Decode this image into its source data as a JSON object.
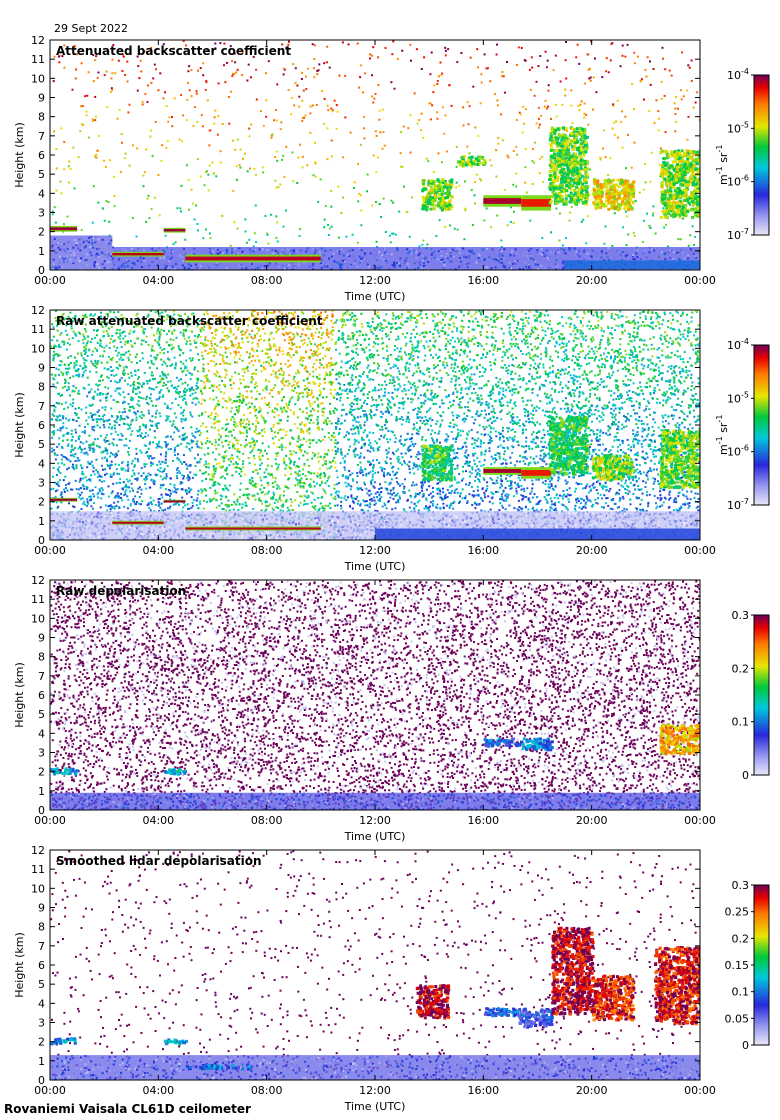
{
  "date": "29 Sept 2022",
  "footer": "Rovaniemi Vaisala CL61D ceilometer",
  "chart_data": [
    {
      "type": "heatmap",
      "title": "Attenuated backscatter coefficient",
      "xlabel": "Time (UTC)",
      "ylabel": "Height (km)",
      "x_ticks": [
        "00:00",
        "04:00",
        "08:00",
        "12:00",
        "16:00",
        "20:00",
        "00:00"
      ],
      "y_ticks": [
        "0",
        "1",
        "2",
        "3",
        "4",
        "5",
        "6",
        "7",
        "8",
        "9",
        "10",
        "11",
        "12"
      ],
      "ylim": [
        0,
        12
      ],
      "colorbar": {
        "scale": "log",
        "range": [
          1e-07,
          0.0001
        ],
        "ticks": [
          {
            "base": "10",
            "exp": "-4"
          },
          {
            "base": "10",
            "exp": "-5"
          },
          {
            "base": "10",
            "exp": "-6"
          },
          {
            "base": "10",
            "exp": "-7"
          }
        ],
        "unit": {
          "a": "m",
          "ea": "-1",
          "b": " sr",
          "eb": "-1"
        }
      },
      "background": "sparse_noise",
      "layers": [
        {
          "t0": 0.0,
          "t1": 2.3,
          "h0": 0.0,
          "h1": 1.8,
          "level": 0.18,
          "kind": "blmix"
        },
        {
          "t0": 2.3,
          "t1": 24.0,
          "h0": 0.0,
          "h1": 1.2,
          "level": 0.2,
          "kind": "blmix"
        },
        {
          "t0": 19.0,
          "t1": 24.0,
          "h0": 0.05,
          "h1": 0.5,
          "level": 0.32,
          "kind": "solid"
        },
        {
          "t0": 0.0,
          "t1": 1.0,
          "h0": 2.0,
          "h1": 2.3,
          "level": 0.97,
          "kind": "cloud"
        },
        {
          "t0": 2.3,
          "t1": 4.2,
          "h0": 0.7,
          "h1": 0.95,
          "level": 0.95,
          "kind": "cloud"
        },
        {
          "t0": 4.2,
          "t1": 5.0,
          "h0": 1.95,
          "h1": 2.2,
          "level": 0.97,
          "kind": "cloud"
        },
        {
          "t0": 5.0,
          "t1": 10.0,
          "h0": 0.4,
          "h1": 0.8,
          "level": 0.95,
          "kind": "cloud"
        },
        {
          "t0": 13.7,
          "t1": 14.8,
          "h0": 3.2,
          "h1": 4.8,
          "level": 0.62,
          "kind": "patch"
        },
        {
          "t0": 15.0,
          "t1": 16.0,
          "h0": 5.5,
          "h1": 6.0,
          "level": 0.6,
          "kind": "patch"
        },
        {
          "t0": 16.0,
          "t1": 17.4,
          "h0": 3.3,
          "h1": 3.9,
          "level": 0.96,
          "kind": "cloud"
        },
        {
          "t0": 17.4,
          "t1": 18.5,
          "h0": 3.1,
          "h1": 3.9,
          "level": 0.9,
          "kind": "cloud"
        },
        {
          "t0": 18.4,
          "t1": 19.8,
          "h0": 3.5,
          "h1": 7.5,
          "level": 0.6,
          "kind": "patch"
        },
        {
          "t0": 20.0,
          "t1": 21.5,
          "h0": 3.2,
          "h1": 4.8,
          "level": 0.7,
          "kind": "patch"
        },
        {
          "t0": 22.5,
          "t1": 24.0,
          "h0": 2.8,
          "h1": 6.3,
          "level": 0.62,
          "kind": "patch"
        }
      ]
    },
    {
      "type": "heatmap",
      "title": "Raw attenuated backscatter coefficient",
      "xlabel": "Time (UTC)",
      "ylabel": "Height (km)",
      "x_ticks": [
        "00:00",
        "04:00",
        "08:00",
        "12:00",
        "16:00",
        "20:00",
        "00:00"
      ],
      "y_ticks": [
        "0",
        "1",
        "2",
        "3",
        "4",
        "5",
        "6",
        "7",
        "8",
        "9",
        "10",
        "11",
        "12"
      ],
      "ylim": [
        0,
        12
      ],
      "colorbar": {
        "scale": "log",
        "range": [
          1e-07,
          0.0001
        ],
        "ticks": [
          {
            "base": "10",
            "exp": "-4"
          },
          {
            "base": "10",
            "exp": "-5"
          },
          {
            "base": "10",
            "exp": "-6"
          },
          {
            "base": "10",
            "exp": "-7"
          }
        ],
        "unit": {
          "a": "m",
          "ea": "-1",
          "b": " sr",
          "eb": "-1"
        }
      },
      "background": "dense_noise",
      "layers": [
        {
          "t0": 0.0,
          "t1": 24.0,
          "h0": 0.0,
          "h1": 1.5,
          "level": 0.06,
          "kind": "blmix"
        },
        {
          "t0": 12.0,
          "t1": 24.0,
          "h0": 0.0,
          "h1": 0.6,
          "level": 0.28,
          "kind": "solid"
        },
        {
          "t0": 0.0,
          "t1": 1.0,
          "h0": 2.0,
          "h1": 2.2,
          "level": 0.97,
          "kind": "cloud"
        },
        {
          "t0": 2.3,
          "t1": 4.2,
          "h0": 0.8,
          "h1": 1.0,
          "level": 0.95,
          "kind": "cloud"
        },
        {
          "t0": 4.2,
          "t1": 5.0,
          "h0": 1.95,
          "h1": 2.1,
          "level": 0.97,
          "kind": "cloud"
        },
        {
          "t0": 5.0,
          "t1": 10.0,
          "h0": 0.5,
          "h1": 0.7,
          "level": 0.95,
          "kind": "cloud"
        },
        {
          "t0": 13.7,
          "t1": 14.8,
          "h0": 3.2,
          "h1": 5.0,
          "level": 0.55,
          "kind": "patch"
        },
        {
          "t0": 16.0,
          "t1": 17.4,
          "h0": 3.4,
          "h1": 3.8,
          "level": 0.96,
          "kind": "cloud"
        },
        {
          "t0": 17.4,
          "t1": 18.5,
          "h0": 3.2,
          "h1": 3.8,
          "level": 0.9,
          "kind": "cloud"
        },
        {
          "t0": 18.4,
          "t1": 19.8,
          "h0": 3.5,
          "h1": 6.5,
          "level": 0.55,
          "kind": "patch"
        },
        {
          "t0": 20.0,
          "t1": 21.5,
          "h0": 3.2,
          "h1": 4.5,
          "level": 0.62,
          "kind": "patch"
        },
        {
          "t0": 22.5,
          "t1": 24.0,
          "h0": 2.8,
          "h1": 5.8,
          "level": 0.6,
          "kind": "patch"
        }
      ]
    },
    {
      "type": "heatmap",
      "title": "Raw depolarisation",
      "xlabel": "Time (UTC)",
      "ylabel": "Height (km)",
      "x_ticks": [
        "00:00",
        "04:00",
        "08:00",
        "12:00",
        "16:00",
        "20:00",
        "00:00"
      ],
      "y_ticks": [
        "0",
        "1",
        "2",
        "3",
        "4",
        "5",
        "6",
        "7",
        "8",
        "9",
        "10",
        "11",
        "12"
      ],
      "ylim": [
        0,
        12
      ],
      "colorbar": {
        "scale": "linear",
        "range": [
          0,
          0.3
        ],
        "ticks": [
          {
            "base": "0.3"
          },
          {
            "base": "0.2"
          },
          {
            "base": "0.1"
          },
          {
            "base": "0"
          }
        ]
      },
      "background": "purple_noise",
      "layers": [
        {
          "t0": 0.0,
          "t1": 24.0,
          "h0": 0.0,
          "h1": 0.9,
          "level": 0.2,
          "kind": "blmix"
        },
        {
          "t0": 0.0,
          "t1": 1.0,
          "h0": 1.95,
          "h1": 2.25,
          "level": 0.4,
          "kind": "patch"
        },
        {
          "t0": 4.2,
          "t1": 5.0,
          "h0": 1.9,
          "h1": 2.2,
          "level": 0.4,
          "kind": "patch"
        },
        {
          "t0": 16.0,
          "t1": 17.4,
          "h0": 3.4,
          "h1": 3.8,
          "level": 0.3,
          "kind": "patch"
        },
        {
          "t0": 17.4,
          "t1": 18.5,
          "h0": 3.2,
          "h1": 3.8,
          "level": 0.35,
          "kind": "patch"
        },
        {
          "t0": 22.5,
          "t1": 24.0,
          "h0": 3.0,
          "h1": 4.5,
          "level": 0.75,
          "kind": "patch"
        }
      ]
    },
    {
      "type": "heatmap",
      "title": "Smoothed lidar depolarisation",
      "xlabel": "Time (UTC)",
      "ylabel": "Height (km)",
      "x_ticks": [
        "00:00",
        "04:00",
        "08:00",
        "12:00",
        "16:00",
        "20:00",
        "00:00"
      ],
      "y_ticks": [
        "0",
        "1",
        "2",
        "3",
        "4",
        "5",
        "6",
        "7",
        "8",
        "9",
        "10",
        "11",
        "12"
      ],
      "ylim": [
        0,
        12
      ],
      "colorbar": {
        "scale": "linear",
        "range": [
          0,
          0.3
        ],
        "ticks": [
          {
            "base": "0.3"
          },
          {
            "base": "0.25"
          },
          {
            "base": "0.2"
          },
          {
            "base": "0.15"
          },
          {
            "base": "0.1"
          },
          {
            "base": "0.05"
          },
          {
            "base": "0"
          }
        ]
      },
      "background": "sparse_purple",
      "layers": [
        {
          "t0": 0.0,
          "t1": 24.0,
          "h0": 0.0,
          "h1": 1.3,
          "level": 0.18,
          "kind": "blmix"
        },
        {
          "t0": 0.0,
          "t1": 0.9,
          "h0": 1.95,
          "h1": 2.25,
          "level": 0.35,
          "kind": "patch"
        },
        {
          "t0": 4.2,
          "t1": 5.0,
          "h0": 1.95,
          "h1": 2.2,
          "level": 0.4,
          "kind": "patch"
        },
        {
          "t0": 5.0,
          "t1": 7.5,
          "h0": 0.65,
          "h1": 0.85,
          "level": 0.3,
          "kind": "patch"
        },
        {
          "t0": 13.5,
          "t1": 14.7,
          "h0": 3.3,
          "h1": 5.0,
          "level": 0.95,
          "kind": "patch"
        },
        {
          "t0": 16.0,
          "t1": 17.3,
          "h0": 3.4,
          "h1": 3.8,
          "level": 0.3,
          "kind": "patch"
        },
        {
          "t0": 17.3,
          "t1": 18.5,
          "h0": 2.8,
          "h1": 3.8,
          "level": 0.25,
          "kind": "patch"
        },
        {
          "t0": 18.5,
          "t1": 20.0,
          "h0": 3.5,
          "h1": 8.0,
          "level": 0.95,
          "kind": "patch"
        },
        {
          "t0": 20.0,
          "t1": 21.5,
          "h0": 3.2,
          "h1": 5.5,
          "level": 0.9,
          "kind": "patch"
        },
        {
          "t0": 22.3,
          "t1": 24.0,
          "h0": 3.0,
          "h1": 7.0,
          "level": 0.92,
          "kind": "patch"
        }
      ]
    }
  ]
}
